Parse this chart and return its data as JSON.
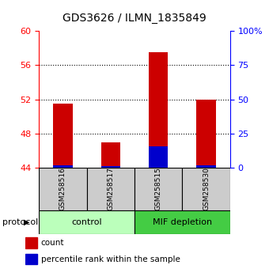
{
  "title": "GDS3626 / ILMN_1835849",
  "samples": [
    "GSM258516",
    "GSM258517",
    "GSM258515",
    "GSM258530"
  ],
  "red_tops": [
    51.5,
    47.0,
    57.5,
    52.0
  ],
  "blue_tops": [
    44.35,
    44.25,
    46.5,
    44.35
  ],
  "bar_bottom": 44.0,
  "ylim": [
    44,
    60
  ],
  "yticks_left": [
    44,
    48,
    52,
    56,
    60
  ],
  "yticks_right": [
    0,
    25,
    50,
    75,
    100
  ],
  "right_yaxis_labels": [
    "0",
    "25",
    "50",
    "75",
    "100%"
  ],
  "red_color": "#cc0000",
  "blue_color": "#0000cc",
  "control_label": "control",
  "mif_label": "MIF depletion",
  "control_color": "#bbffbb",
  "mif_color": "#44cc44",
  "protocol_label": "protocol",
  "legend_count": "count",
  "legend_percentile": "percentile rank within the sample",
  "bar_width": 0.4,
  "title_fontsize": 10,
  "gridline_ticks": [
    48,
    52,
    56
  ]
}
